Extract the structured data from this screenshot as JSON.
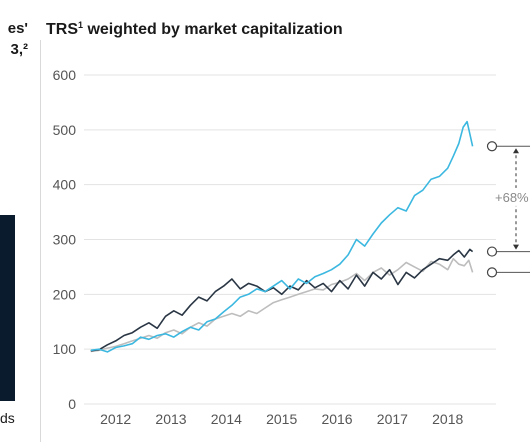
{
  "left_panel": {
    "title_lines": [
      "es'",
      "3,²"
    ],
    "label": "ds"
  },
  "chart_data": {
    "type": "line",
    "title": "TRS",
    "title_superscript": "1",
    "title_rest": " weighted by market capitalization",
    "xlabel": "",
    "ylabel": "",
    "ylim": [
      0,
      600
    ],
    "yticks": [
      0,
      100,
      200,
      300,
      400,
      500,
      600
    ],
    "xlim": [
      2011.5,
      2018.8
    ],
    "xticks": [
      2012,
      2013,
      2014,
      2015,
      2016,
      2017,
      2018
    ],
    "grid": "horizontal",
    "series": [
      {
        "color": "#3cb8e0",
        "x": [
          2011.55,
          2011.7,
          2011.85,
          2012.0,
          2012.15,
          2012.3,
          2012.45,
          2012.6,
          2012.75,
          2012.9,
          2013.05,
          2013.2,
          2013.35,
          2013.5,
          2013.65,
          2013.8,
          2013.95,
          2014.1,
          2014.25,
          2014.4,
          2014.55,
          2014.7,
          2014.85,
          2015.0,
          2015.15,
          2015.3,
          2015.45,
          2015.6,
          2015.75,
          2015.9,
          2016.05,
          2016.2,
          2016.35,
          2016.5,
          2016.65,
          2016.8,
          2016.95,
          2017.1,
          2017.25,
          2017.4,
          2017.55,
          2017.7,
          2017.85,
          2018.0,
          2018.1,
          2018.2,
          2018.28,
          2018.35,
          2018.45
        ],
        "values": [
          98,
          100,
          95,
          103,
          106,
          110,
          122,
          118,
          125,
          128,
          122,
          132,
          140,
          135,
          150,
          155,
          168,
          180,
          195,
          200,
          210,
          205,
          215,
          225,
          210,
          228,
          220,
          232,
          238,
          245,
          255,
          272,
          300,
          288,
          310,
          330,
          345,
          358,
          352,
          380,
          390,
          410,
          415,
          430,
          452,
          475,
          505,
          515,
          470
        ]
      },
      {
        "color": "#2a3644",
        "x": [
          2011.55,
          2011.7,
          2011.85,
          2012.0,
          2012.15,
          2012.3,
          2012.45,
          2012.6,
          2012.75,
          2012.9,
          2013.05,
          2013.2,
          2013.35,
          2013.5,
          2013.65,
          2013.8,
          2013.95,
          2014.1,
          2014.25,
          2014.4,
          2014.55,
          2014.7,
          2014.85,
          2015.0,
          2015.15,
          2015.3,
          2015.45,
          2015.6,
          2015.75,
          2015.9,
          2016.05,
          2016.2,
          2016.35,
          2016.5,
          2016.65,
          2016.8,
          2016.95,
          2017.1,
          2017.25,
          2017.4,
          2017.55,
          2017.7,
          2017.85,
          2018.0,
          2018.1,
          2018.2,
          2018.3,
          2018.4,
          2018.45
        ],
        "values": [
          97,
          99,
          108,
          115,
          125,
          130,
          140,
          148,
          138,
          160,
          170,
          162,
          180,
          195,
          188,
          205,
          215,
          228,
          210,
          220,
          215,
          205,
          212,
          200,
          215,
          208,
          225,
          212,
          220,
          205,
          225,
          210,
          235,
          215,
          240,
          228,
          245,
          218,
          240,
          230,
          245,
          255,
          265,
          262,
          272,
          280,
          268,
          282,
          278
        ]
      },
      {
        "color": "#bdbdbd",
        "x": [
          2011.55,
          2011.7,
          2011.85,
          2012.0,
          2012.15,
          2012.3,
          2012.45,
          2012.6,
          2012.75,
          2012.9,
          2013.05,
          2013.2,
          2013.35,
          2013.5,
          2013.65,
          2013.8,
          2013.95,
          2014.1,
          2014.25,
          2014.4,
          2014.55,
          2014.7,
          2014.85,
          2015.0,
          2015.15,
          2015.3,
          2015.45,
          2015.6,
          2015.75,
          2015.9,
          2016.05,
          2016.2,
          2016.35,
          2016.5,
          2016.65,
          2016.8,
          2016.95,
          2017.1,
          2017.25,
          2017.4,
          2017.55,
          2017.7,
          2017.85,
          2018.0,
          2018.1,
          2018.2,
          2018.3,
          2018.38,
          2018.45
        ],
        "values": [
          96,
          98,
          102,
          105,
          110,
          115,
          120,
          125,
          120,
          130,
          135,
          128,
          140,
          148,
          142,
          155,
          160,
          165,
          160,
          170,
          165,
          175,
          185,
          190,
          195,
          200,
          205,
          210,
          208,
          218,
          222,
          228,
          238,
          225,
          240,
          248,
          235,
          245,
          258,
          250,
          242,
          260,
          255,
          245,
          265,
          255,
          252,
          262,
          240
        ]
      }
    ],
    "end_markers": [
      470,
      278,
      240
    ],
    "annotation": {
      "label": "+68%",
      "from": 278,
      "to": 470
    }
  }
}
